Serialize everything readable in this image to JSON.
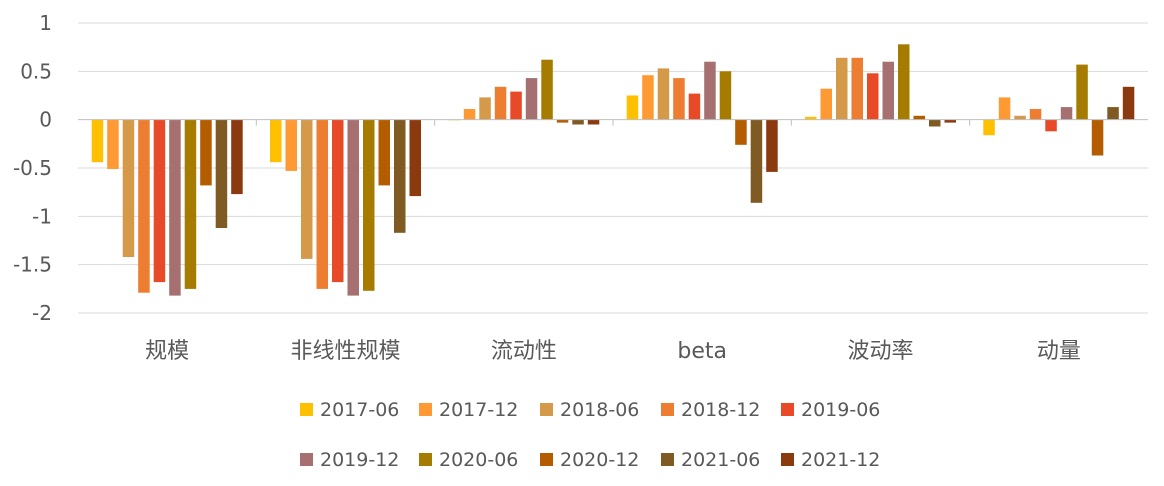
{
  "chart_data": {
    "type": "bar",
    "categories": [
      "规模",
      "非线性规模",
      "流动性",
      "beta",
      "波动率",
      "动量"
    ],
    "ylim": [
      -2,
      1
    ],
    "yticks": [
      "1",
      "0.5",
      "0",
      "-0.5",
      "-1",
      "-1.5",
      "-2"
    ],
    "ytick_values": [
      1,
      0.5,
      0,
      -0.5,
      -1,
      -1.5,
      -2
    ],
    "grid": true,
    "legend_position": "bottom",
    "series": [
      {
        "name": "2017-06",
        "color": "#FFC000",
        "values": [
          -0.44,
          -0.44,
          0.0,
          0.25,
          0.03,
          -0.16
        ]
      },
      {
        "name": "2017-12",
        "color": "#FF9933",
        "values": [
          -0.51,
          -0.53,
          0.11,
          0.46,
          0.32,
          0.23
        ]
      },
      {
        "name": "2018-06",
        "color": "#D49A4A",
        "values": [
          -1.42,
          -1.44,
          0.23,
          0.53,
          0.64,
          0.04
        ]
      },
      {
        "name": "2018-12",
        "color": "#ED7D31",
        "values": [
          -1.79,
          -1.75,
          0.34,
          0.43,
          0.64,
          0.11
        ]
      },
      {
        "name": "2019-06",
        "color": "#E84A27",
        "values": [
          -1.68,
          -1.68,
          0.29,
          0.27,
          0.48,
          -0.12
        ]
      },
      {
        "name": "2019-12",
        "color": "#A5706F",
        "values": [
          -1.82,
          -1.82,
          0.43,
          0.6,
          0.6,
          0.13
        ]
      },
      {
        "name": "2020-06",
        "color": "#A67C00",
        "values": [
          -1.75,
          -1.77,
          0.62,
          0.5,
          0.78,
          0.57
        ]
      },
      {
        "name": "2020-12",
        "color": "#B35C00",
        "values": [
          -0.68,
          -0.68,
          -0.03,
          -0.26,
          0.04,
          -0.37
        ]
      },
      {
        "name": "2021-06",
        "color": "#7F5A23",
        "values": [
          -1.12,
          -1.17,
          -0.05,
          -0.86,
          -0.07,
          0.13
        ]
      },
      {
        "name": "2021-12",
        "color": "#8B3A0F",
        "values": [
          -0.77,
          -0.79,
          -0.05,
          -0.54,
          -0.03,
          0.34
        ]
      }
    ]
  }
}
